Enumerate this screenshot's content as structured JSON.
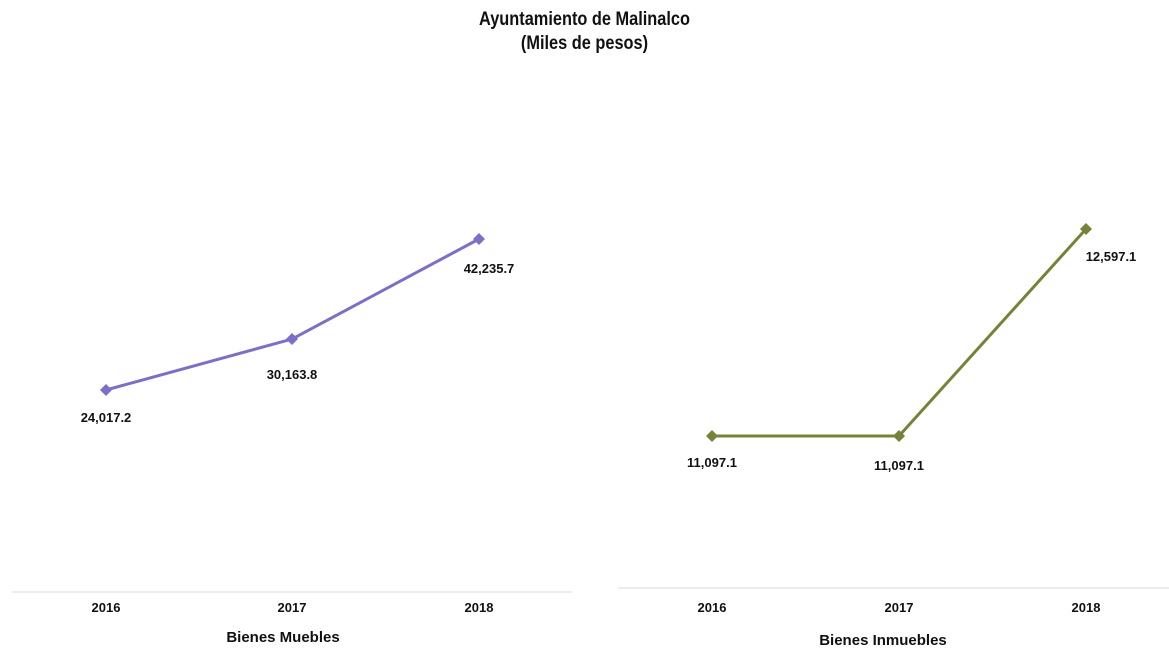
{
  "title": "Ayuntamiento de Malinalco",
  "subtitle": "(Miles de pesos)",
  "chart_data": [
    {
      "type": "line",
      "categories": [
        "2016",
        "2017",
        "2018"
      ],
      "series": [
        {
          "values": [
            24017.2,
            30163.8,
            42235.7
          ],
          "color": "#7b6fc8"
        }
      ],
      "data_labels": [
        "24,017.2",
        "30,163.8",
        "42,235.7"
      ],
      "xlabel": "Bienes Muebles",
      "marker": "diamond",
      "grid": false
    },
    {
      "type": "line",
      "categories": [
        "2016",
        "2017",
        "2018"
      ],
      "series": [
        {
          "values": [
            11097.1,
            11097.1,
            12597.1
          ],
          "color": "#778238"
        }
      ],
      "data_labels": [
        "11,097.1",
        "11,097.1",
        "12,597.1"
      ],
      "xlabel": "Bienes Inmuebles",
      "marker": "diamond",
      "grid": false
    }
  ]
}
